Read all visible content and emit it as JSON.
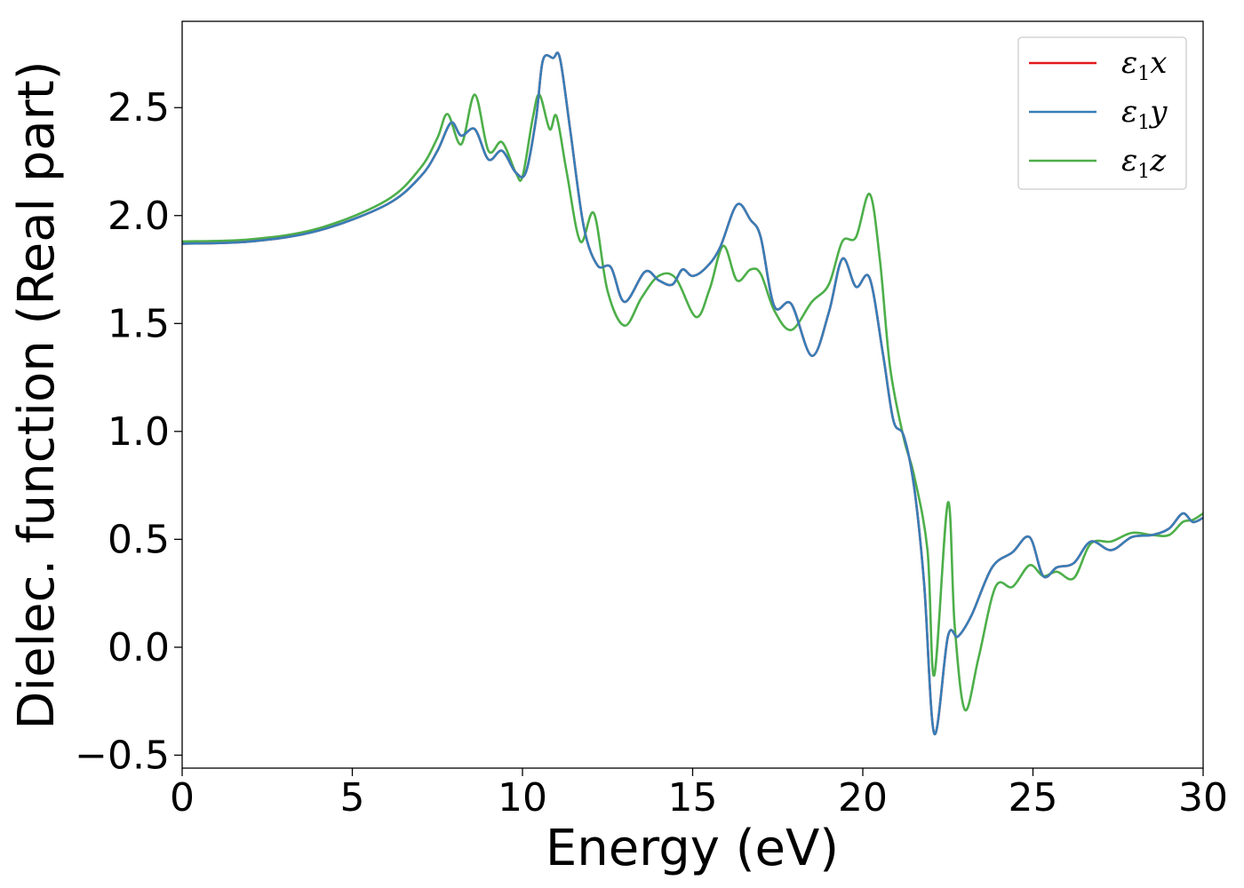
{
  "chart_data": {
    "type": "line",
    "title": "",
    "xlabel": "Energy (eV)",
    "ylabel": "Dielec. function (Real part)",
    "xlim": [
      0,
      30
    ],
    "ylim": [
      -0.56,
      2.9
    ],
    "xticks": [
      0,
      5,
      10,
      15,
      20,
      25,
      30
    ],
    "xtick_labels": [
      "0",
      "5",
      "10",
      "15",
      "20",
      "25",
      "30"
    ],
    "yticks": [
      -0.5,
      0.0,
      0.5,
      1.0,
      1.5,
      2.0,
      2.5
    ],
    "ytick_labels": [
      "−0.5",
      "0.0",
      "0.5",
      "1.0",
      "1.5",
      "2.0",
      "2.5"
    ],
    "grid": false,
    "legend_position": "top-right",
    "legend_entries": [
      {
        "symbol": "ε",
        "sub": "1",
        "suffix": "x",
        "color": "#e41a1c"
      },
      {
        "symbol": "ε",
        "sub": "1",
        "suffix": "y",
        "color": "#377eb8"
      },
      {
        "symbol": "ε",
        "sub": "1",
        "suffix": "z",
        "color": "#4daf4a"
      }
    ],
    "series": [
      {
        "name": "ε1x",
        "color": "#e41a1c",
        "points": [
          [
            0,
            1.87
          ],
          [
            2,
            1.88
          ],
          [
            4,
            1.93
          ],
          [
            6,
            2.05
          ],
          [
            7,
            2.18
          ],
          [
            7.5,
            2.3
          ],
          [
            7.9,
            2.43
          ],
          [
            8.2,
            2.37
          ],
          [
            8.6,
            2.4
          ],
          [
            9.0,
            2.26
          ],
          [
            9.4,
            2.3
          ],
          [
            9.8,
            2.2
          ],
          [
            10.1,
            2.2
          ],
          [
            10.4,
            2.45
          ],
          [
            10.6,
            2.72
          ],
          [
            10.9,
            2.73
          ],
          [
            11.1,
            2.73
          ],
          [
            11.4,
            2.4
          ],
          [
            11.8,
            1.95
          ],
          [
            12.2,
            1.77
          ],
          [
            12.6,
            1.76
          ],
          [
            13.0,
            1.6
          ],
          [
            13.6,
            1.74
          ],
          [
            14.0,
            1.7
          ],
          [
            14.4,
            1.68
          ],
          [
            14.7,
            1.75
          ],
          [
            15.0,
            1.72
          ],
          [
            15.4,
            1.76
          ],
          [
            15.8,
            1.85
          ],
          [
            16.3,
            2.05
          ],
          [
            16.7,
            1.98
          ],
          [
            17.0,
            1.9
          ],
          [
            17.4,
            1.58
          ],
          [
            17.9,
            1.59
          ],
          [
            18.5,
            1.35
          ],
          [
            19.0,
            1.55
          ],
          [
            19.4,
            1.8
          ],
          [
            19.8,
            1.67
          ],
          [
            20.2,
            1.71
          ],
          [
            20.6,
            1.35
          ],
          [
            20.9,
            1.05
          ],
          [
            21.2,
            0.98
          ],
          [
            21.5,
            0.75
          ],
          [
            21.8,
            0.3
          ],
          [
            22.1,
            -0.4
          ],
          [
            22.5,
            0.05
          ],
          [
            22.8,
            0.05
          ],
          [
            23.2,
            0.15
          ],
          [
            23.8,
            0.37
          ],
          [
            24.4,
            0.44
          ],
          [
            24.9,
            0.51
          ],
          [
            25.3,
            0.33
          ],
          [
            25.7,
            0.37
          ],
          [
            26.2,
            0.39
          ],
          [
            26.7,
            0.49
          ],
          [
            27.3,
            0.45
          ],
          [
            27.9,
            0.51
          ],
          [
            28.5,
            0.52
          ],
          [
            29.0,
            0.55
          ],
          [
            29.4,
            0.62
          ],
          [
            29.7,
            0.58
          ],
          [
            30,
            0.6
          ]
        ]
      },
      {
        "name": "ε1y",
        "color": "#377eb8",
        "points": [
          [
            0,
            1.87
          ],
          [
            2,
            1.88
          ],
          [
            4,
            1.93
          ],
          [
            6,
            2.05
          ],
          [
            7,
            2.18
          ],
          [
            7.5,
            2.3
          ],
          [
            7.9,
            2.43
          ],
          [
            8.2,
            2.37
          ],
          [
            8.6,
            2.4
          ],
          [
            9.0,
            2.26
          ],
          [
            9.4,
            2.3
          ],
          [
            9.8,
            2.2
          ],
          [
            10.1,
            2.2
          ],
          [
            10.4,
            2.45
          ],
          [
            10.6,
            2.72
          ],
          [
            10.9,
            2.73
          ],
          [
            11.1,
            2.73
          ],
          [
            11.4,
            2.4
          ],
          [
            11.8,
            1.95
          ],
          [
            12.2,
            1.77
          ],
          [
            12.6,
            1.76
          ],
          [
            13.0,
            1.6
          ],
          [
            13.6,
            1.74
          ],
          [
            14.0,
            1.7
          ],
          [
            14.4,
            1.68
          ],
          [
            14.7,
            1.75
          ],
          [
            15.0,
            1.72
          ],
          [
            15.4,
            1.76
          ],
          [
            15.8,
            1.85
          ],
          [
            16.3,
            2.05
          ],
          [
            16.7,
            1.98
          ],
          [
            17.0,
            1.9
          ],
          [
            17.4,
            1.58
          ],
          [
            17.9,
            1.59
          ],
          [
            18.5,
            1.35
          ],
          [
            19.0,
            1.55
          ],
          [
            19.4,
            1.8
          ],
          [
            19.8,
            1.67
          ],
          [
            20.2,
            1.71
          ],
          [
            20.6,
            1.35
          ],
          [
            20.9,
            1.05
          ],
          [
            21.2,
            0.98
          ],
          [
            21.5,
            0.75
          ],
          [
            21.8,
            0.3
          ],
          [
            22.1,
            -0.4
          ],
          [
            22.5,
            0.05
          ],
          [
            22.8,
            0.05
          ],
          [
            23.2,
            0.15
          ],
          [
            23.8,
            0.37
          ],
          [
            24.4,
            0.44
          ],
          [
            24.9,
            0.51
          ],
          [
            25.3,
            0.33
          ],
          [
            25.7,
            0.37
          ],
          [
            26.2,
            0.39
          ],
          [
            26.7,
            0.49
          ],
          [
            27.3,
            0.45
          ],
          [
            27.9,
            0.51
          ],
          [
            28.5,
            0.52
          ],
          [
            29.0,
            0.55
          ],
          [
            29.4,
            0.62
          ],
          [
            29.7,
            0.58
          ],
          [
            30,
            0.6
          ]
        ]
      },
      {
        "name": "ε1z",
        "color": "#4daf4a",
        "points": [
          [
            0,
            1.88
          ],
          [
            2,
            1.89
          ],
          [
            4,
            1.94
          ],
          [
            6,
            2.07
          ],
          [
            7,
            2.22
          ],
          [
            7.5,
            2.36
          ],
          [
            7.8,
            2.47
          ],
          [
            8.2,
            2.33
          ],
          [
            8.6,
            2.56
          ],
          [
            9.0,
            2.3
          ],
          [
            9.4,
            2.34
          ],
          [
            9.8,
            2.2
          ],
          [
            10.0,
            2.18
          ],
          [
            10.3,
            2.45
          ],
          [
            10.5,
            2.56
          ],
          [
            10.8,
            2.4
          ],
          [
            11.0,
            2.46
          ],
          [
            11.3,
            2.2
          ],
          [
            11.7,
            1.88
          ],
          [
            12.1,
            2.01
          ],
          [
            12.5,
            1.65
          ],
          [
            13.0,
            1.49
          ],
          [
            13.5,
            1.62
          ],
          [
            14.0,
            1.72
          ],
          [
            14.5,
            1.71
          ],
          [
            15.1,
            1.53
          ],
          [
            15.5,
            1.66
          ],
          [
            15.9,
            1.86
          ],
          [
            16.3,
            1.7
          ],
          [
            16.7,
            1.75
          ],
          [
            17.0,
            1.73
          ],
          [
            17.4,
            1.56
          ],
          [
            17.9,
            1.47
          ],
          [
            18.5,
            1.6
          ],
          [
            19.0,
            1.68
          ],
          [
            19.4,
            1.88
          ],
          [
            19.8,
            1.9
          ],
          [
            20.2,
            2.1
          ],
          [
            20.5,
            1.8
          ],
          [
            20.8,
            1.3
          ],
          [
            21.2,
            0.97
          ],
          [
            21.5,
            0.8
          ],
          [
            21.9,
            0.45
          ],
          [
            22.1,
            -0.13
          ],
          [
            22.5,
            0.67
          ],
          [
            22.7,
            0.1
          ],
          [
            23.0,
            -0.29
          ],
          [
            23.4,
            -0.05
          ],
          [
            23.9,
            0.28
          ],
          [
            24.4,
            0.28
          ],
          [
            24.9,
            0.38
          ],
          [
            25.3,
            0.33
          ],
          [
            25.7,
            0.35
          ],
          [
            26.2,
            0.32
          ],
          [
            26.7,
            0.48
          ],
          [
            27.3,
            0.49
          ],
          [
            27.9,
            0.53
          ],
          [
            28.5,
            0.52
          ],
          [
            29.0,
            0.52
          ],
          [
            29.4,
            0.58
          ],
          [
            29.7,
            0.59
          ],
          [
            30,
            0.62
          ]
        ]
      }
    ]
  }
}
